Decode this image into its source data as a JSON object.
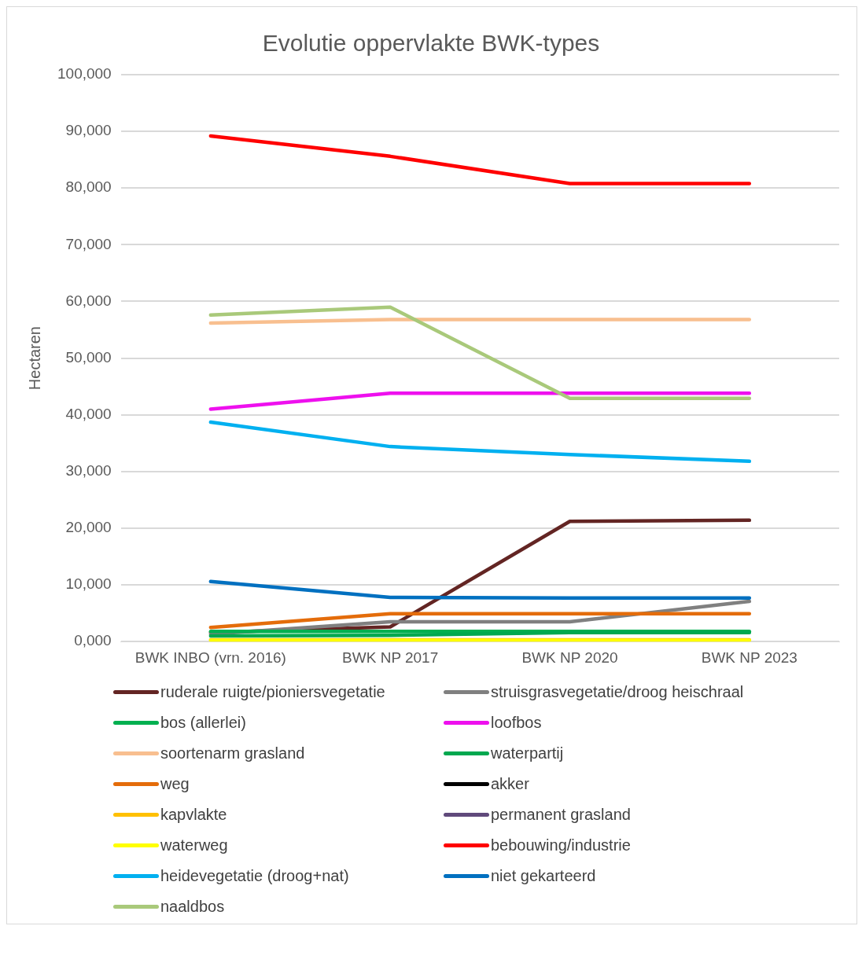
{
  "chart_data": {
    "type": "line",
    "title": "Evolutie oppervlakte BWK-types",
    "ylabel": "Hectaren",
    "categories": [
      "BWK INBO (vrn. 2016)",
      "BWK NP 2017",
      "BWK NP 2020",
      "BWK NP 2023"
    ],
    "ylim": [
      0,
      100000
    ],
    "yticks": [
      {
        "value": 0,
        "label": "0,000"
      },
      {
        "value": 10000,
        "label": "10,000"
      },
      {
        "value": 20000,
        "label": "20,000"
      },
      {
        "value": 30000,
        "label": "30,000"
      },
      {
        "value": 40000,
        "label": "40,000"
      },
      {
        "value": 50000,
        "label": "50,000"
      },
      {
        "value": 60000,
        "label": "60,000"
      },
      {
        "value": 70000,
        "label": "70,000"
      },
      {
        "value": 80000,
        "label": "80,000"
      },
      {
        "value": 90000,
        "label": "90,000"
      },
      {
        "value": 100000,
        "label": "100,000"
      }
    ],
    "grid": "y",
    "legend": "bottom",
    "marker": "none",
    "line_style": "solid",
    "series": [
      {
        "name": "ruderale ruigte/pioniersvegetatie",
        "color": "#632523",
        "values": [
          1600,
          2600,
          21200,
          21400
        ]
      },
      {
        "name": "struisgrasvegetatie/droog heischraal",
        "color": "#808080",
        "values": [
          1300,
          3500,
          3500,
          7100
        ]
      },
      {
        "name": "bos (allerlei)",
        "color": "#00b050",
        "values": [
          1800,
          1800,
          1800,
          1800
        ]
      },
      {
        "name": "loofbos",
        "color": "#ee10ee",
        "values": [
          41000,
          43800,
          43800,
          43800
        ]
      },
      {
        "name": "soortenarm grasland",
        "color": "#f8bf8f",
        "values": [
          56200,
          56800,
          56800,
          56800
        ]
      },
      {
        "name": "waterpartij",
        "color": "#00a84f",
        "values": [
          1000,
          1100,
          1600,
          1600
        ]
      },
      {
        "name": "weg",
        "color": "#e46c0a",
        "values": [
          2500,
          4900,
          4900,
          4900
        ]
      },
      {
        "name": "akker",
        "color": "#000000",
        "values": [
          null,
          null,
          null,
          null
        ]
      },
      {
        "name": "kapvlakte",
        "color": "#ffc000",
        "values": [
          300,
          300,
          300,
          300
        ]
      },
      {
        "name": "permanent grasland",
        "color": "#604a7b",
        "values": [
          null,
          null,
          null,
          null
        ]
      },
      {
        "name": "waterweg",
        "color": "#ffff00",
        "values": [
          200,
          200,
          200,
          200
        ]
      },
      {
        "name": "bebouwing/industrie",
        "color": "#ff0000",
        "values": [
          89200,
          85600,
          80800,
          80800
        ]
      },
      {
        "name": "heidevegetatie (droog+nat)",
        "color": "#00b0f0",
        "values": [
          38700,
          34400,
          33000,
          31800
        ]
      },
      {
        "name": "niet gekarteerd",
        "color": "#0070c0",
        "values": [
          10600,
          7800,
          7700,
          7700
        ]
      },
      {
        "name": "naaldbos",
        "color": "#a9c97a",
        "values": [
          57600,
          59000,
          42900,
          42900
        ]
      }
    ]
  }
}
